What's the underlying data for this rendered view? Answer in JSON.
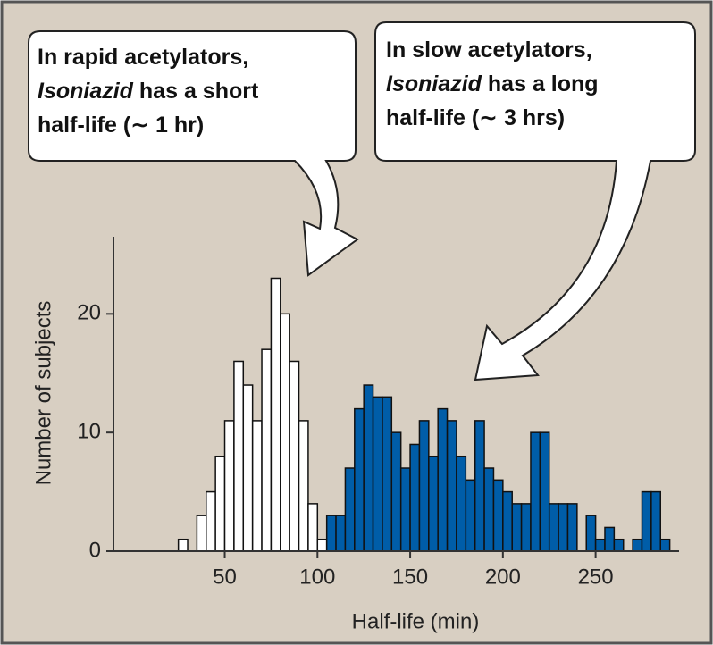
{
  "chart_data": {
    "type": "histogram",
    "xlabel": "Half-life (min)",
    "ylabel": "Number of subjects",
    "xlim": [
      -10,
      295
    ],
    "ylim": [
      0,
      26.5
    ],
    "xticks": [
      50,
      100,
      150,
      200,
      250
    ],
    "yticks": [
      0,
      10,
      20
    ],
    "annotations": [
      {
        "line1": "In rapid acetylators,",
        "drug": "Isoniazid",
        "line2": " has a short",
        "line3": "half-life (∼ 1 hr)"
      },
      {
        "line1": "In slow acetylators,",
        "drug": "Isoniazid",
        "line2": " has a long",
        "line3": "half-life (∼ 3 hrs)"
      }
    ],
    "series": [
      {
        "color": "#ffffff",
        "bins": [
          25,
          30,
          35,
          40,
          45,
          50,
          55,
          60,
          65,
          70,
          75,
          80,
          85,
          90,
          95,
          100,
          105
        ],
        "values": [
          1,
          0,
          3,
          5,
          8,
          11,
          16,
          14,
          11,
          17,
          23,
          20,
          16,
          11,
          4,
          1
        ]
      },
      {
        "color": "#005da8",
        "bins": [
          105,
          110,
          115,
          120,
          125,
          130,
          135,
          140,
          145,
          150,
          155,
          160,
          165,
          170,
          175,
          180,
          185,
          190,
          195,
          200,
          205,
          210,
          215,
          220,
          225,
          230,
          235,
          240,
          245,
          250,
          255,
          260,
          265,
          270,
          275,
          280,
          285,
          290
        ],
        "values": [
          3,
          3,
          7,
          12,
          14,
          13,
          13,
          10,
          7,
          9,
          11,
          8,
          12,
          11,
          8,
          6,
          11,
          7,
          6,
          5,
          4,
          4,
          10,
          10,
          4,
          4,
          4,
          0,
          3,
          1,
          2,
          1,
          0,
          1,
          5,
          5,
          1
        ]
      }
    ]
  }
}
